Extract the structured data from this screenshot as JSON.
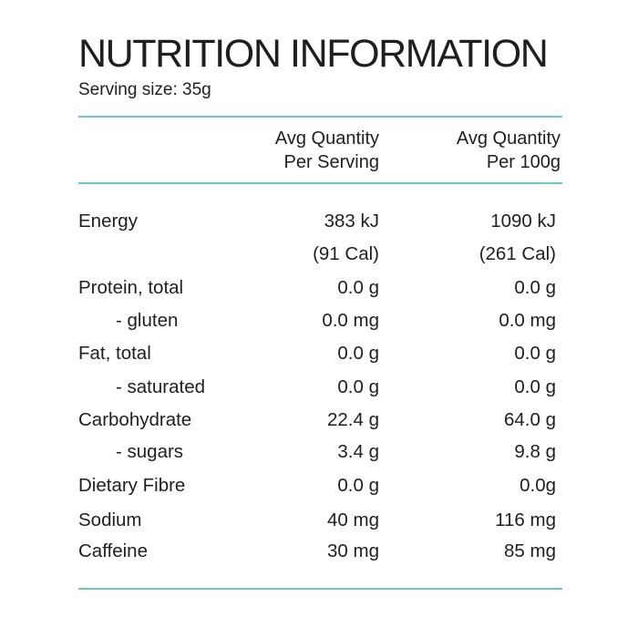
{
  "title": "NUTRITION INFORMATION",
  "serving_size": "Serving size: 35g",
  "columns": {
    "per_serving": [
      "Avg Quantity",
      "Per Serving"
    ],
    "per_100g": [
      "Avg Quantity",
      "Per 100g"
    ]
  },
  "rows": [
    {
      "label": "Energy",
      "per_serving": "383 kJ",
      "per_100g": "1090 kJ",
      "indent": false
    },
    {
      "label": "",
      "per_serving": "(91 Cal)",
      "per_100g": "(261 Cal)",
      "indent": false
    },
    {
      "label": "Protein, total",
      "per_serving": "0.0 g",
      "per_100g": "0.0 g",
      "indent": false
    },
    {
      "label": "- gluten",
      "per_serving": "0.0 mg",
      "per_100g": "0.0 mg",
      "indent": true
    },
    {
      "label": "Fat, total",
      "per_serving": "0.0 g",
      "per_100g": "0.0 g",
      "indent": false
    },
    {
      "label": "- saturated",
      "per_serving": "0.0 g",
      "per_100g": "0.0 g",
      "indent": true
    },
    {
      "label": "Carbohydrate",
      "per_serving": "22.4 g",
      "per_100g": "64.0 g",
      "indent": false
    },
    {
      "label": "- sugars",
      "per_serving": "3.4 g",
      "per_100g": "9.8 g",
      "indent": true
    },
    {
      "label": "Dietary Fibre",
      "per_serving": "0.0 g",
      "per_100g": "0.0g",
      "indent": false
    },
    {
      "label": "Sodium",
      "per_serving": "40 mg",
      "per_100g": "116 mg",
      "indent": false
    },
    {
      "label": "Caffeine",
      "per_serving": "30 mg",
      "per_100g": "85 mg",
      "indent": false
    }
  ],
  "colors": {
    "rule": "#67cdb8",
    "text": "#1f1f1f",
    "background": "#ffffff"
  }
}
